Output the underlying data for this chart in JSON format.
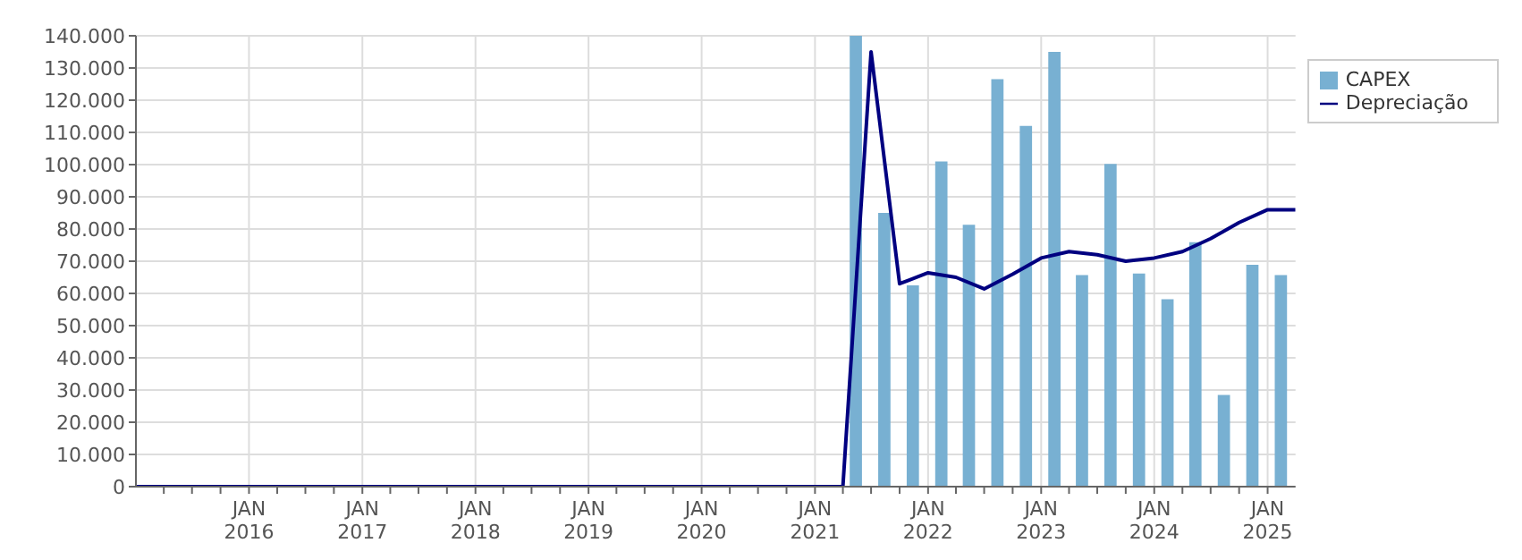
{
  "chart_data": {
    "type": "bar",
    "xlim": [
      "2015-01",
      "2025-04"
    ],
    "xticks": [
      {
        "value": "2015-04",
        "label": null
      },
      {
        "value": "2015-07",
        "label": null
      },
      {
        "value": "2015-10",
        "label": null
      },
      {
        "value": "2016-01",
        "label": "JAN\n2016"
      },
      {
        "value": "2016-04",
        "label": null
      },
      {
        "value": "2016-07",
        "label": null
      },
      {
        "value": "2016-10",
        "label": null
      },
      {
        "value": "2017-01",
        "label": "JAN\n2017"
      },
      {
        "value": "2017-04",
        "label": null
      },
      {
        "value": "2017-07",
        "label": null
      },
      {
        "value": "2017-10",
        "label": null
      },
      {
        "value": "2018-01",
        "label": "JAN\n2018"
      },
      {
        "value": "2018-04",
        "label": null
      },
      {
        "value": "2018-07",
        "label": null
      },
      {
        "value": "2018-10",
        "label": null
      },
      {
        "value": "2019-01",
        "label": "JAN\n2019"
      },
      {
        "value": "2019-04",
        "label": null
      },
      {
        "value": "2019-07",
        "label": null
      },
      {
        "value": "2019-10",
        "label": null
      },
      {
        "value": "2020-01",
        "label": "JAN\n2020"
      },
      {
        "value": "2020-04",
        "label": null
      },
      {
        "value": "2020-07",
        "label": null
      },
      {
        "value": "2020-10",
        "label": null
      },
      {
        "value": "2021-01",
        "label": "JAN\n2021"
      },
      {
        "value": "2021-04",
        "label": null
      },
      {
        "value": "2021-07",
        "label": null
      },
      {
        "value": "2021-10",
        "label": null
      },
      {
        "value": "2022-01",
        "label": "JAN\n2022"
      },
      {
        "value": "2022-04",
        "label": null
      },
      {
        "value": "2022-07",
        "label": null
      },
      {
        "value": "2022-10",
        "label": null
      },
      {
        "value": "2023-01",
        "label": "JAN\n2023"
      },
      {
        "value": "2023-04",
        "label": null
      },
      {
        "value": "2023-07",
        "label": null
      },
      {
        "value": "2023-10",
        "label": null
      },
      {
        "value": "2024-01",
        "label": "JAN\n2024"
      },
      {
        "value": "2024-04",
        "label": null
      },
      {
        "value": "2024-07",
        "label": null
      },
      {
        "value": "2024-10",
        "label": null
      },
      {
        "value": "2025-01",
        "label": "JAN\n2025"
      }
    ],
    "ylim": [
      0,
      140000
    ],
    "yticks": [
      {
        "value": 0,
        "label": "0"
      },
      {
        "value": 10000,
        "label": "10.000"
      },
      {
        "value": 20000,
        "label": "20.000"
      },
      {
        "value": 30000,
        "label": "30.000"
      },
      {
        "value": 40000,
        "label": "40.000"
      },
      {
        "value": 50000,
        "label": "50.000"
      },
      {
        "value": 60000,
        "label": "60.000"
      },
      {
        "value": 70000,
        "label": "70.000"
      },
      {
        "value": 80000,
        "label": "80.000"
      },
      {
        "value": 90000,
        "label": "90.000"
      },
      {
        "value": 100000,
        "label": "100.000"
      },
      {
        "value": 110000,
        "label": "110.000"
      },
      {
        "value": 120000,
        "label": "120.000"
      },
      {
        "value": 130000,
        "label": "130.000"
      },
      {
        "value": 140000,
        "label": "140.000"
      }
    ],
    "grid": true,
    "legend": "top right",
    "series": [
      {
        "name": "CAPEX",
        "color": "#78b0d2",
        "x": [
          "2021-05-15",
          "2021-08-15",
          "2021-11-15",
          "2022-02-15",
          "2022-05-15",
          "2022-08-15",
          "2022-11-15",
          "2023-02-15",
          "2023-05-15",
          "2023-08-15",
          "2023-11-15",
          "2024-02-15",
          "2024-05-15",
          "2024-08-15",
          "2024-11-15",
          "2025-02-15"
        ],
        "values": [
          140000,
          85000,
          62500,
          101000,
          81300,
          126500,
          112000,
          135000,
          65700,
          100200,
          66200,
          58200,
          75900,
          28500,
          68900,
          65700
        ]
      },
      {
        "name": "Depreciação",
        "type": "line",
        "color": "#000080",
        "marker": "none",
        "line_style": "solid",
        "x": [
          "2015-01",
          "2021-04",
          "2021-07",
          "2021-10",
          "2022-01",
          "2022-04",
          "2022-07",
          "2022-10",
          "2023-01",
          "2023-04",
          "2023-07",
          "2023-10",
          "2024-01",
          "2024-04",
          "2024-07",
          "2024-10",
          "2025-01",
          "2025-04"
        ],
        "values": [
          0,
          0,
          135000,
          63000,
          66400,
          65000,
          61400,
          66000,
          71000,
          73000,
          72000,
          70000,
          71000,
          73000,
          77000,
          82000,
          86000,
          86000
        ]
      }
    ]
  }
}
